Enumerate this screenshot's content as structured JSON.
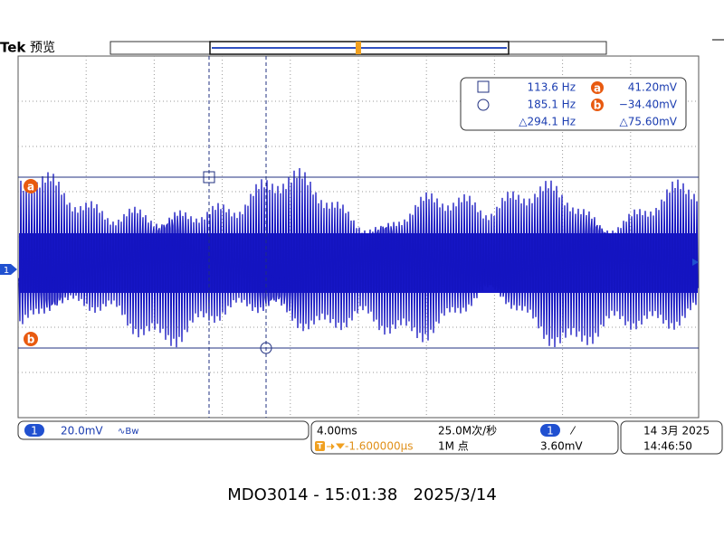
{
  "header": {
    "brand": "Tek",
    "mode": "预览"
  },
  "markers": {
    "channel": "1",
    "trigger": "T",
    "cursor_a": "a",
    "cursor_b": "b"
  },
  "readout": {
    "rows": [
      [
        "113.6 Hz",
        "a",
        "41.20mV"
      ],
      [
        "185.1 Hz",
        "b",
        "−34.40mV"
      ],
      [
        "△294.1 Hz",
        "",
        "△75.60mV"
      ]
    ]
  },
  "channel_bar": {
    "channel": "1",
    "scale": "20.0mV",
    "bandwidth": "∿Bw"
  },
  "timebase": {
    "scale": "4.00ms",
    "sample_rate": "25.0M次/秒",
    "trigger_source": "1",
    "trigger_slope": "⁄",
    "trigger_badge": "T",
    "position": "-1.600000μs",
    "record": "1M 点",
    "trigger_level": "3.60mV"
  },
  "clock": {
    "date": "14 3月 2025",
    "time": "14:46:50"
  },
  "caption": "MDO3014 - 15:01:38   2025/3/14"
}
